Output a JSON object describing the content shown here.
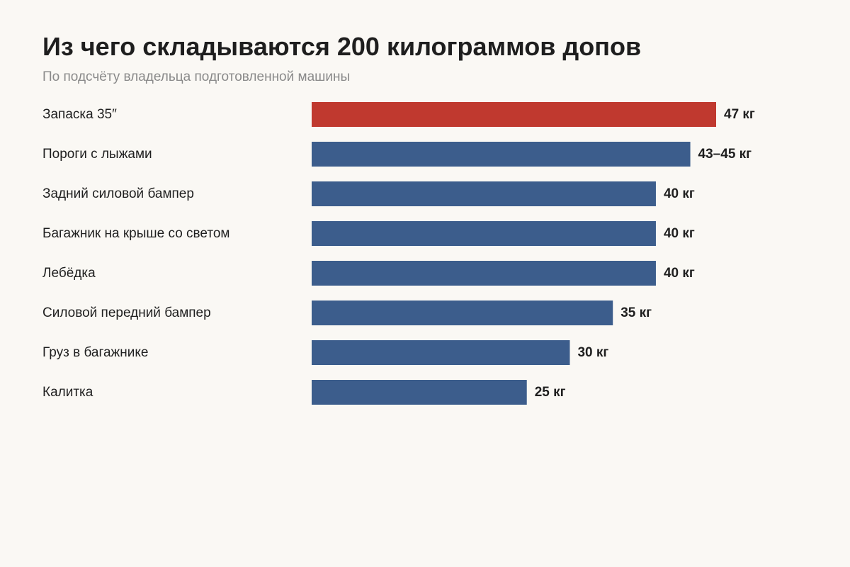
{
  "header": {
    "title": "Из чего складываются 200 килограммов допов",
    "subtitle": "По подсчёту владельца подготовленной машины"
  },
  "chart_data": {
    "type": "bar",
    "orientation": "horizontal",
    "title": "Из чего складываются 200 килограммов допов",
    "subtitle": "По подсчёту владельца подготовленной машины",
    "xlabel": "",
    "ylabel": "",
    "unit": "кг",
    "grid": false,
    "legend": "none",
    "xlim": [
      0,
      47
    ],
    "categories": [
      "Запаска 35″",
      "Пороги с лыжами",
      "Задний силовой бампер",
      "Багажник на крыше со светом",
      "Лебёдка",
      "Силовой передний бампер",
      "Груз в багажнике",
      "Калитка"
    ],
    "values": [
      47,
      44,
      40,
      40,
      40,
      35,
      30,
      25
    ],
    "value_labels": [
      "47 кг",
      "43–45 кг",
      "40 кг",
      "40 кг",
      "40 кг",
      "35 кг",
      "30 кг",
      "25 кг"
    ],
    "colors": [
      "#c0392f",
      "#3c5d8c",
      "#3c5d8c",
      "#3c5d8c",
      "#3c5d8c",
      "#3c5d8c",
      "#3c5d8c",
      "#3c5d8c"
    ]
  }
}
